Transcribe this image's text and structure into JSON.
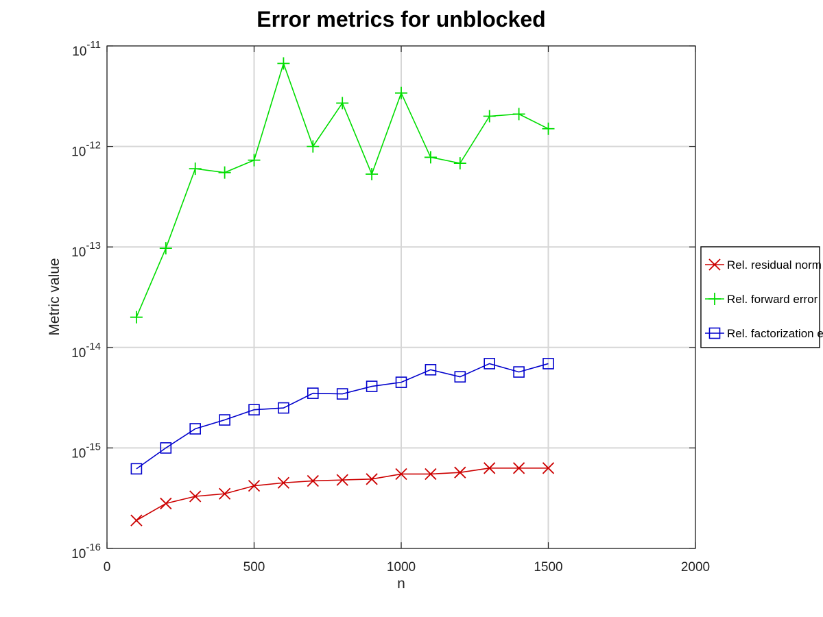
{
  "chart_data": {
    "type": "line",
    "title": "Error metrics for unblocked",
    "xlabel": "n",
    "ylabel": "Metric value",
    "xlim": [
      0,
      2000
    ],
    "ylim": [
      1e-16,
      1e-11
    ],
    "yscale": "log",
    "grid": true,
    "legend_position": "outside-right",
    "x_ticks": [
      0,
      500,
      1000,
      1500,
      2000
    ],
    "x_tick_labels": [
      "0",
      "500",
      "1000",
      "1500",
      "2000"
    ],
    "y_ticks": [
      1e-16,
      1e-15,
      1e-14,
      1e-13,
      1e-12,
      1e-11
    ],
    "y_tick_labels": [
      {
        "base": "10",
        "exp": "-16"
      },
      {
        "base": "10",
        "exp": "-15"
      },
      {
        "base": "10",
        "exp": "-14"
      },
      {
        "base": "10",
        "exp": "-13"
      },
      {
        "base": "10",
        "exp": "-12"
      },
      {
        "base": "10",
        "exp": "-11"
      }
    ],
    "x": [
      100,
      200,
      300,
      400,
      500,
      600,
      700,
      800,
      900,
      1000,
      1100,
      1200,
      1300,
      1400,
      1500
    ],
    "series": [
      {
        "name": "Rel. residual norm",
        "color": "#cc0000",
        "marker": "x",
        "values": [
          1.9e-16,
          2.8e-16,
          3.3e-16,
          3.5e-16,
          4.2e-16,
          4.5e-16,
          4.7e-16,
          4.8e-16,
          4.9e-16,
          5.5e-16,
          5.5e-16,
          5.7e-16,
          6.3e-16,
          6.3e-16,
          6.3e-16
        ]
      },
      {
        "name": "Rel. forward error",
        "color": "#00dd00",
        "marker": "plus",
        "values": [
          2e-14,
          9.7e-14,
          6e-13,
          5.5e-13,
          7.3e-13,
          6.7e-12,
          1e-12,
          2.7e-12,
          5.3e-13,
          3.4e-12,
          7.8e-13,
          6.8e-13,
          2e-12,
          2.1e-12,
          1.5e-12
        ]
      },
      {
        "name": "Rel. factorization error",
        "color": "#0000cc",
        "marker": "square",
        "values": [
          6.2e-16,
          1e-15,
          1.55e-15,
          1.9e-15,
          2.4e-15,
          2.5e-15,
          3.5e-15,
          3.45e-15,
          4.1e-15,
          4.5e-15,
          6e-15,
          5.1e-15,
          6.9e-15,
          5.7e-15,
          6.9e-15
        ]
      }
    ]
  }
}
